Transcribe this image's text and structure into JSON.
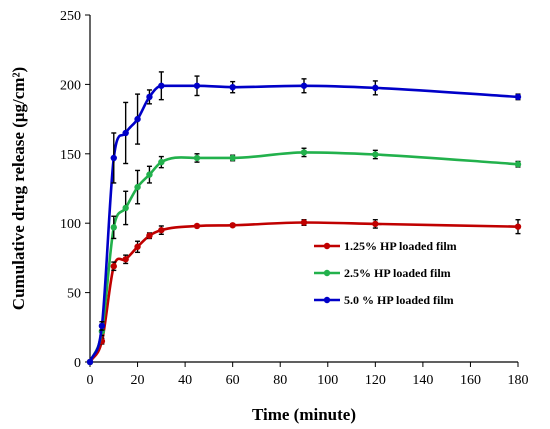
{
  "chart_data": {
    "type": "line",
    "title": "",
    "xlabel": "Time (minute)",
    "ylabel": "Cumulative drug release (μg/cm²)",
    "xlim": [
      0,
      180
    ],
    "ylim": [
      0,
      250
    ],
    "x_ticks": [
      0,
      20,
      40,
      60,
      80,
      100,
      120,
      140,
      160,
      180
    ],
    "y_ticks": [
      0,
      50,
      100,
      150,
      200,
      250
    ],
    "grid": false,
    "legend_position": "center-right",
    "x": [
      0,
      5,
      10,
      15,
      20,
      25,
      30,
      45,
      60,
      90,
      120,
      180
    ],
    "series": [
      {
        "name": "1.25% HP loaded film",
        "color": "#c00000",
        "values": [
          0,
          15,
          69,
          74,
          83,
          91,
          95,
          98,
          98.5,
          100.5,
          99.5,
          97.5
        ],
        "errors": [
          0,
          2,
          3,
          3,
          4,
          2,
          3,
          1,
          1,
          2,
          3,
          5
        ]
      },
      {
        "name": "2.5% HP loaded film",
        "color": "#22b14c",
        "values": [
          0,
          22,
          97,
          111,
          126,
          135,
          144,
          147,
          147,
          151,
          149.5,
          142.5
        ],
        "errors": [
          0,
          3,
          8,
          12,
          12,
          6,
          4,
          3,
          2,
          3,
          3,
          2
        ]
      },
      {
        "name": "5.0 % HP loaded film",
        "color": "#0000c8",
        "values": [
          0,
          26,
          147,
          165,
          175,
          191,
          199,
          199,
          198,
          199,
          197.5,
          191
        ],
        "errors": [
          0,
          3,
          18,
          22,
          18,
          5,
          10,
          7,
          4,
          5,
          5,
          2
        ]
      }
    ]
  }
}
